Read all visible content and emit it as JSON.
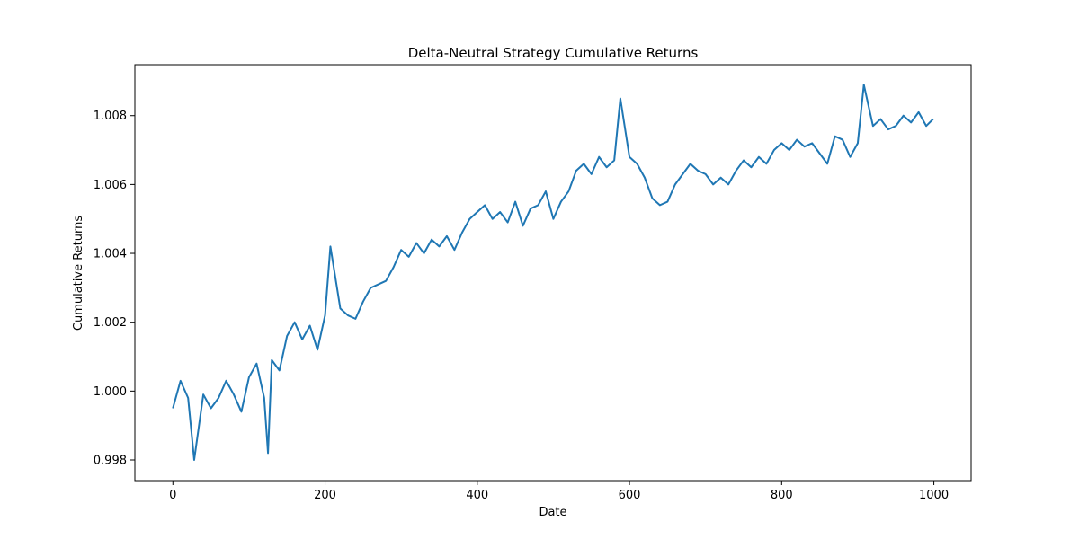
{
  "chart_data": {
    "type": "line",
    "title": "Delta-Neutral Strategy Cumulative Returns",
    "xlabel": "Date",
    "ylabel": "Cumulative Returns",
    "xlim": [
      -49.95,
      1048.95
    ],
    "ylim": [
      0.9974,
      1.00948
    ],
    "xticks": [
      0,
      200,
      400,
      600,
      800,
      1000
    ],
    "yticks": [
      0.998,
      {
        "value": 1.0,
        "label": "1.000"
      },
      1.002,
      1.004,
      1.006,
      1.008
    ],
    "grid": false,
    "series": [
      {
        "name": "Cumulative Returns",
        "color": "#1f77b4",
        "x": [
          0,
          10,
          20,
          28,
          40,
          50,
          60,
          70,
          80,
          90,
          100,
          110,
          120,
          125,
          130,
          140,
          150,
          160,
          170,
          180,
          190,
          200,
          207,
          220,
          230,
          240,
          250,
          260,
          270,
          280,
          290,
          300,
          310,
          320,
          330,
          340,
          350,
          360,
          370,
          380,
          390,
          400,
          410,
          420,
          430,
          440,
          450,
          460,
          470,
          480,
          490,
          500,
          510,
          520,
          530,
          540,
          550,
          560,
          570,
          580,
          588,
          600,
          610,
          620,
          630,
          640,
          650,
          660,
          670,
          680,
          690,
          700,
          710,
          720,
          730,
          740,
          750,
          760,
          770,
          780,
          790,
          800,
          810,
          820,
          830,
          840,
          850,
          860,
          870,
          880,
          890,
          900,
          908,
          920,
          930,
          940,
          950,
          960,
          970,
          980,
          990,
          999
        ],
        "values": [
          0.9995,
          1.0003,
          0.9998,
          0.998,
          0.9999,
          0.9995,
          0.9998,
          1.0003,
          0.9999,
          0.9994,
          1.0004,
          1.0008,
          0.9998,
          0.9982,
          1.0009,
          1.0006,
          1.0016,
          1.002,
          1.0015,
          1.0019,
          1.0012,
          1.0022,
          1.0042,
          1.0024,
          1.0022,
          1.0021,
          1.0026,
          1.003,
          1.0031,
          1.0032,
          1.0036,
          1.0041,
          1.0039,
          1.0043,
          1.004,
          1.0044,
          1.0042,
          1.0045,
          1.0041,
          1.0046,
          1.005,
          1.0052,
          1.0054,
          1.005,
          1.0052,
          1.0049,
          1.0055,
          1.0048,
          1.0053,
          1.0054,
          1.0058,
          1.005,
          1.0055,
          1.0058,
          1.0064,
          1.0066,
          1.0063,
          1.0068,
          1.0065,
          1.0067,
          1.0085,
          1.0068,
          1.0066,
          1.0062,
          1.0056,
          1.0054,
          1.0055,
          1.006,
          1.0063,
          1.0066,
          1.0064,
          1.0063,
          1.006,
          1.0062,
          1.006,
          1.0064,
          1.0067,
          1.0065,
          1.0068,
          1.0066,
          1.007,
          1.0072,
          1.007,
          1.0073,
          1.0071,
          1.0072,
          1.0069,
          1.0066,
          1.0074,
          1.0073,
          1.0068,
          1.0072,
          1.0089,
          1.0077,
          1.0079,
          1.0076,
          1.0077,
          1.008,
          1.0078,
          1.0081,
          1.0077,
          1.0079
        ]
      }
    ]
  }
}
